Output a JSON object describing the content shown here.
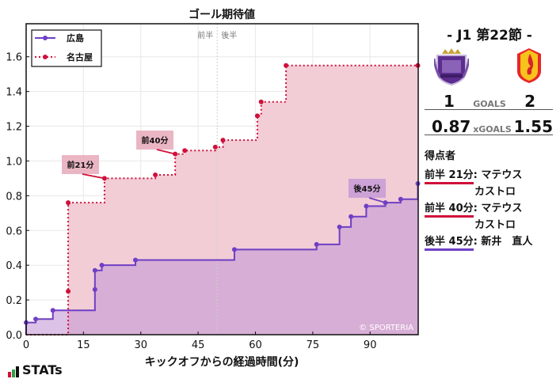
{
  "chart_data": {
    "type": "line",
    "title": "ゴール期待値",
    "xlabel": "キックオフからの経過時間(分)",
    "ylabel": "",
    "xlim": [
      0,
      102.6
    ],
    "ylim": [
      0,
      1.79
    ],
    "xticks": [
      0,
      15,
      30,
      45,
      60,
      75,
      90
    ],
    "yticks": [
      0.0,
      0.2,
      0.4,
      0.6,
      0.8,
      1.0,
      1.2,
      1.4,
      1.6
    ],
    "grid": true,
    "legend_position": "upper left",
    "halftime_marker": {
      "x": 50,
      "labels": [
        "前半",
        "後半"
      ]
    },
    "series": [
      {
        "name": "広島",
        "color": "#6f3fc4",
        "style": "solid step",
        "x": [
          0,
          2.5,
          7,
          18,
          18,
          19.8,
          28.6,
          54.5,
          76,
          82,
          85,
          89,
          94,
          98,
          102.5
        ],
        "y": [
          0.07,
          0.09,
          0.14,
          0.26,
          0.37,
          0.4,
          0.43,
          0.49,
          0.52,
          0.62,
          0.68,
          0.74,
          0.76,
          0.78,
          0.87
        ]
      },
      {
        "name": "名古屋",
        "color": "#d0103a",
        "style": "dotted step",
        "x": [
          11,
          11,
          20.5,
          33.8,
          39,
          41.5,
          49.5,
          51.5,
          60.5,
          61.5,
          68,
          102.5
        ],
        "y": [
          0.25,
          0.76,
          0.9,
          0.92,
          1.04,
          1.06,
          1.08,
          1.12,
          1.26,
          1.34,
          1.55,
          1.55
        ]
      }
    ],
    "annotations": [
      {
        "text": "前21分",
        "x": 20.5,
        "y": 0.9,
        "team": "名古屋"
      },
      {
        "text": "前40分",
        "x": 39,
        "y": 1.04,
        "team": "名古屋"
      },
      {
        "text": "後45分",
        "x": 94,
        "y": 0.76,
        "team": "広島"
      }
    ],
    "watermark": "© SPORTERIA"
  },
  "match": {
    "title": "-  J1 第22節  -",
    "home": {
      "name": "広島",
      "goals": "1",
      "xg": "0.87",
      "color": "#6f3fc4"
    },
    "away": {
      "name": "名古屋",
      "goals": "2",
      "xg": "1.55",
      "color": "#d0103a"
    },
    "goals_label": "GOALS",
    "xgoals_label": "xGOALS"
  },
  "scorers": {
    "title": "得点者",
    "items": [
      {
        "time": "前半 21分",
        "name": "マテウス",
        "name2": "カストロ",
        "color": "#d0103a"
      },
      {
        "time": "前半 40分",
        "name": "マテウス",
        "name2": "カストロ",
        "color": "#d0103a"
      },
      {
        "time": "後半 45分",
        "name": "新井　直人",
        "name2": "",
        "color": "#6f3fc4"
      }
    ]
  },
  "brand": {
    "logo_text": "STATs"
  }
}
